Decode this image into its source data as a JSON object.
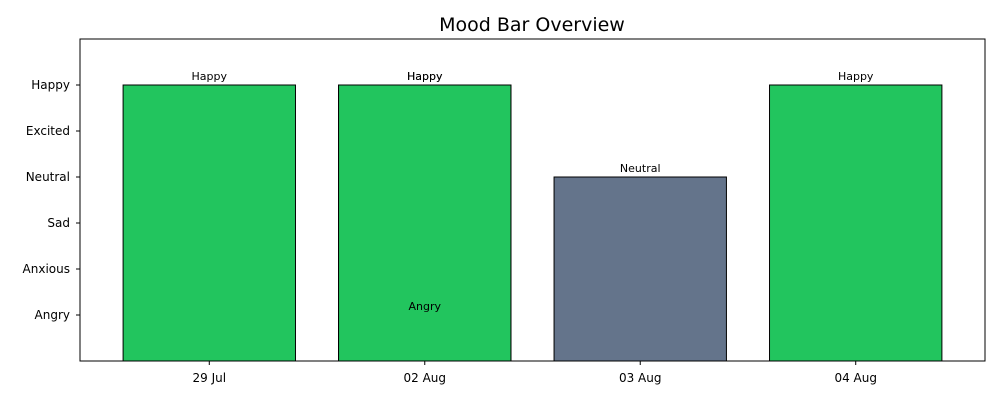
{
  "chart_data": {
    "type": "bar",
    "title": "Mood Bar Overview",
    "xlabel": "",
    "ylabel": "",
    "mood_levels": [
      "Angry",
      "Anxious",
      "Sad",
      "Neutral",
      "Excited",
      "Happy"
    ],
    "categories": [
      "29 Jul",
      "02 Aug",
      "03 Aug",
      "04 Aug"
    ],
    "entries": [
      {
        "category": "29 Jul",
        "mood": "Happy",
        "value": 5,
        "color": "#22c55e"
      },
      {
        "category": "02 Aug",
        "mood": "Angry",
        "value": 0,
        "color": "#22c55e"
      },
      {
        "category": "02 Aug",
        "mood": "Happy",
        "value": 5,
        "color": "#22c55e"
      },
      {
        "category": "02 Aug",
        "mood": "Happy",
        "value": 5,
        "color": "#22c55e"
      },
      {
        "category": "03 Aug",
        "mood": "Neutral",
        "value": 3,
        "color": "#64748b"
      },
      {
        "category": "04 Aug",
        "mood": "Happy",
        "value": 5,
        "color": "#22c55e"
      }
    ],
    "ylim": [
      -1,
      6
    ],
    "grid": false,
    "legend": "none"
  }
}
